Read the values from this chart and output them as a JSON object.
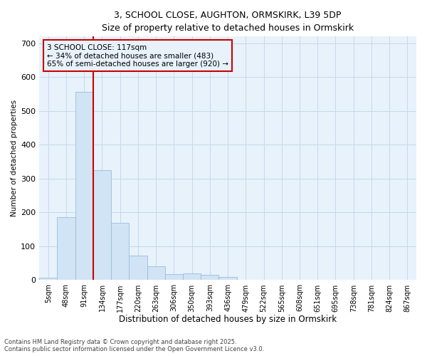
{
  "title_line1": "3, SCHOOL CLOSE, AUGHTON, ORMSKIRK, L39 5DP",
  "title_line2": "Size of property relative to detached houses in Ormskirk",
  "xlabel": "Distribution of detached houses by size in Ormskirk",
  "ylabel": "Number of detached properties",
  "bar_color": "#d0e4f5",
  "bar_edge_color": "#9bbcd8",
  "grid_color": "#c5d8ec",
  "background_color": "#ffffff",
  "plot_bg_color": "#e8f2fb",
  "annotation_text": "3 SCHOOL CLOSE: 117sqm\n← 34% of detached houses are smaller (483)\n65% of semi-detached houses are larger (920) →",
  "vline_color": "#cc0000",
  "box_color": "#cc0000",
  "footer_line1": "Contains HM Land Registry data © Crown copyright and database right 2025.",
  "footer_line2": "Contains public sector information licensed under the Open Government Licence v3.0.",
  "categories": [
    "5sqm",
    "48sqm",
    "91sqm",
    "134sqm",
    "177sqm",
    "220sqm",
    "263sqm",
    "306sqm",
    "350sqm",
    "393sqm",
    "436sqm",
    "479sqm",
    "522sqm",
    "565sqm",
    "608sqm",
    "651sqm",
    "695sqm",
    "738sqm",
    "781sqm",
    "824sqm",
    "867sqm"
  ],
  "values": [
    8,
    187,
    557,
    325,
    170,
    73,
    40,
    18,
    20,
    15,
    10,
    0,
    0,
    0,
    0,
    0,
    0,
    0,
    0,
    0,
    0
  ],
  "ylim": [
    0,
    720
  ],
  "yticks": [
    0,
    100,
    200,
    300,
    400,
    500,
    600,
    700
  ]
}
